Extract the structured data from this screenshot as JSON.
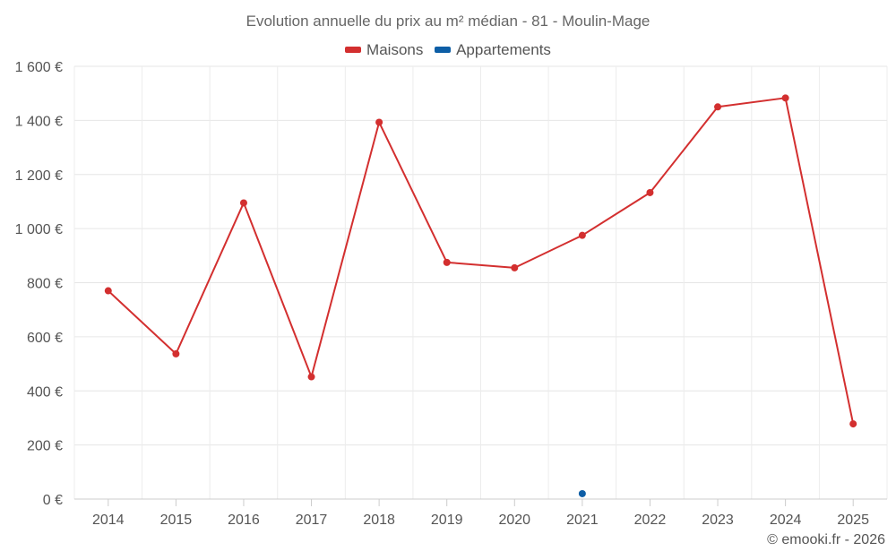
{
  "chart_data": {
    "type": "line",
    "title": "Evolution annuelle du prix au m² médian - 81 - Moulin-Mage",
    "xlabel": "",
    "ylabel": "",
    "categories": [
      "2014",
      "2015",
      "2016",
      "2017",
      "2018",
      "2019",
      "2020",
      "2021",
      "2022",
      "2023",
      "2024",
      "2025"
    ],
    "ylim": [
      0,
      1600
    ],
    "yticks": [
      0,
      200,
      400,
      600,
      800,
      1000,
      1200,
      1400,
      1600
    ],
    "ytick_labels": [
      "0 €",
      "200 €",
      "400 €",
      "600 €",
      "800 €",
      "1 000 €",
      "1 200 €",
      "1 400 €",
      "1 600 €"
    ],
    "grid": true,
    "legend_position": "top-center",
    "series": [
      {
        "name": "Maisons",
        "color": "#d32f2f",
        "values": [
          770,
          537,
          1095,
          452,
          1393,
          875,
          855,
          975,
          1133,
          1450,
          1483,
          278
        ]
      },
      {
        "name": "Appartements",
        "color": "#0d5ea6",
        "values": [
          null,
          null,
          null,
          null,
          null,
          null,
          null,
          20,
          null,
          null,
          null,
          null
        ]
      }
    ]
  },
  "footer": "© emooki.fr - 2026"
}
